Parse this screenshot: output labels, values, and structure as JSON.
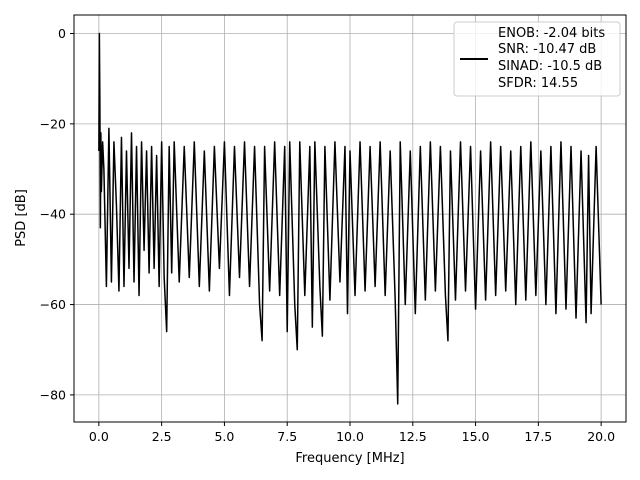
{
  "chart_data": {
    "type": "line",
    "xlabel": "Frequency [MHz]",
    "ylabel": "PSD [dB]",
    "xlim": [
      -0.99,
      20.99
    ],
    "ylim": [
      -86.0,
      4.1
    ],
    "grid": true,
    "x_ticks": [
      0.0,
      2.5,
      5.0,
      7.5,
      10.0,
      12.5,
      15.0,
      17.5,
      20.0
    ],
    "x_tick_labels": [
      "0.0",
      "2.5",
      "5.0",
      "7.5",
      "10.0",
      "12.5",
      "15.0",
      "17.5",
      "20.0"
    ],
    "y_ticks": [
      0,
      -20,
      -40,
      -60,
      -80
    ],
    "y_tick_labels": [
      "0",
      "−20",
      "−40",
      "−60",
      "−80"
    ],
    "legend": {
      "position": "upper right",
      "entries": [
        "ENOB: -2.04 bits",
        "SNR: -10.47 dB",
        "SINAD: -10.5 dB",
        "SFDR: 14.55"
      ]
    },
    "series": [
      {
        "color": "#000000",
        "note_values": "noise floor spectrum, sampled",
        "x": [
          0.0,
          0.02,
          0.04,
          0.06,
          0.08,
          0.1,
          0.15,
          0.2,
          0.3,
          0.4,
          0.5,
          0.6,
          0.7,
          0.8,
          0.9,
          1.0,
          1.1,
          1.2,
          1.3,
          1.4,
          1.5,
          1.6,
          1.7,
          1.8,
          1.9,
          2.0,
          2.1,
          2.2,
          2.3,
          2.4,
          2.5,
          2.6,
          2.7,
          2.8,
          2.9,
          3.0,
          3.2,
          3.4,
          3.6,
          3.8,
          4.0,
          4.2,
          4.4,
          4.6,
          4.8,
          5.0,
          5.2,
          5.4,
          5.6,
          5.8,
          6.0,
          6.2,
          6.4,
          6.5,
          6.6,
          6.8,
          7.0,
          7.2,
          7.4,
          7.5,
          7.6,
          7.8,
          7.9,
          8.0,
          8.2,
          8.4,
          8.5,
          8.6,
          8.8,
          8.9,
          9.0,
          9.2,
          9.4,
          9.6,
          9.8,
          9.9,
          10.0,
          10.2,
          10.4,
          10.6,
          10.8,
          11.0,
          11.2,
          11.4,
          11.6,
          11.8,
          11.9,
          12.0,
          12.2,
          12.4,
          12.6,
          12.8,
          13.0,
          13.2,
          13.4,
          13.6,
          13.8,
          13.9,
          14.0,
          14.2,
          14.4,
          14.6,
          14.8,
          15.0,
          15.2,
          15.4,
          15.6,
          15.8,
          16.0,
          16.2,
          16.4,
          16.6,
          16.8,
          17.0,
          17.2,
          17.4,
          17.6,
          17.8,
          18.0,
          18.2,
          18.4,
          18.6,
          18.8,
          19.0,
          19.2,
          19.4,
          19.5,
          19.6,
          19.8,
          20.0
        ],
        "y": [
          -26,
          0,
          -15,
          -43,
          -22,
          -35,
          -24,
          -30,
          -56,
          -21,
          -55,
          -24,
          -38,
          -57,
          -23,
          -56,
          -26,
          -52,
          -22,
          -55,
          -25,
          -58,
          -24,
          -48,
          -26,
          -53,
          -25,
          -52,
          -27,
          -56,
          -24,
          -54,
          -66,
          -25,
          -53,
          -24,
          -55,
          -25,
          -54,
          -24,
          -56,
          -26,
          -57,
          -25,
          -52,
          -24,
          -58,
          -25,
          -54,
          -24,
          -56,
          -25,
          -60,
          -68,
          -25,
          -57,
          -24,
          -58,
          -25,
          -66,
          -24,
          -60,
          -70,
          -24,
          -58,
          -25,
          -65,
          -24,
          -56,
          -67,
          -25,
          -59,
          -24,
          -55,
          -25,
          -62,
          -26,
          -58,
          -24,
          -57,
          -25,
          -56,
          -24,
          -58,
          -26,
          -59,
          -82,
          -24,
          -60,
          -26,
          -62,
          -25,
          -59,
          -24,
          -57,
          -25,
          -58,
          -68,
          -26,
          -59,
          -24,
          -57,
          -25,
          -61,
          -26,
          -59,
          -24,
          -58,
          -25,
          -57,
          -26,
          -60,
          -25,
          -59,
          -24,
          -58,
          -26,
          -60,
          -25,
          -62,
          -24,
          -61,
          -25,
          -63,
          -26,
          -64,
          -27,
          -62,
          -25,
          -60
        ]
      }
    ]
  }
}
